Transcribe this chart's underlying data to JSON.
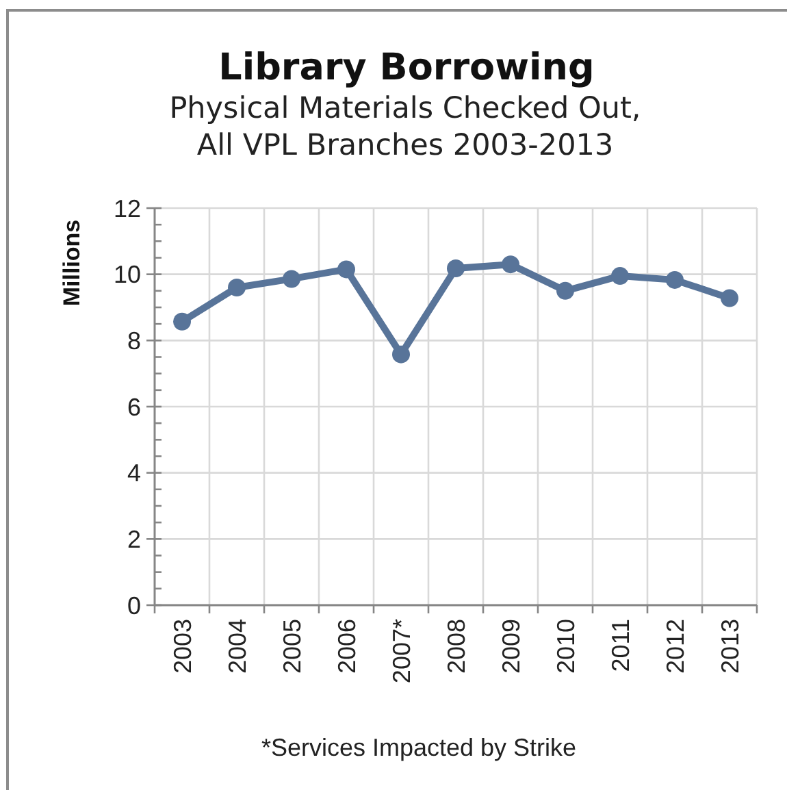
{
  "chart_data": {
    "type": "line",
    "title": "Library Borrowing",
    "subtitle": "Physical Materials Checked Out,\nAll VPL Branches 2003-2013",
    "ylabel": "Millions",
    "categories": [
      "2003",
      "2004",
      "2005",
      "2006",
      "2007*",
      "2008",
      "2009",
      "2010",
      "2011",
      "2012",
      "2013"
    ],
    "values": [
      8.57,
      9.6,
      9.86,
      10.15,
      7.58,
      10.18,
      10.3,
      9.5,
      9.95,
      9.83,
      9.28
    ],
    "color": "#587499",
    "marker": "circle",
    "ylim": [
      0,
      12
    ],
    "yticks": [
      0,
      {
        "value": 0.5,
        "label": null
      },
      {
        "value": 1,
        "label": null
      },
      {
        "value": 1.5,
        "label": null
      },
      2,
      {
        "value": 2.5,
        "label": null
      },
      {
        "value": 3,
        "label": null
      },
      {
        "value": 3.5,
        "label": null
      },
      4,
      {
        "value": 4.5,
        "label": null
      },
      {
        "value": 5,
        "label": null
      },
      {
        "value": 5.5,
        "label": null
      },
      6,
      {
        "value": 6.5,
        "label": null
      },
      {
        "value": 7,
        "label": null
      },
      {
        "value": 7.5,
        "label": null
      },
      8,
      {
        "value": 8.5,
        "label": null
      },
      {
        "value": 9,
        "label": null
      },
      {
        "value": 9.5,
        "label": null
      },
      10,
      {
        "value": 10.5,
        "label": null
      },
      {
        "value": 11,
        "label": null
      },
      {
        "value": 11.5,
        "label": null
      },
      12
    ],
    "grid": true,
    "annotations": [
      "*Services Impacted by Strike"
    ]
  }
}
